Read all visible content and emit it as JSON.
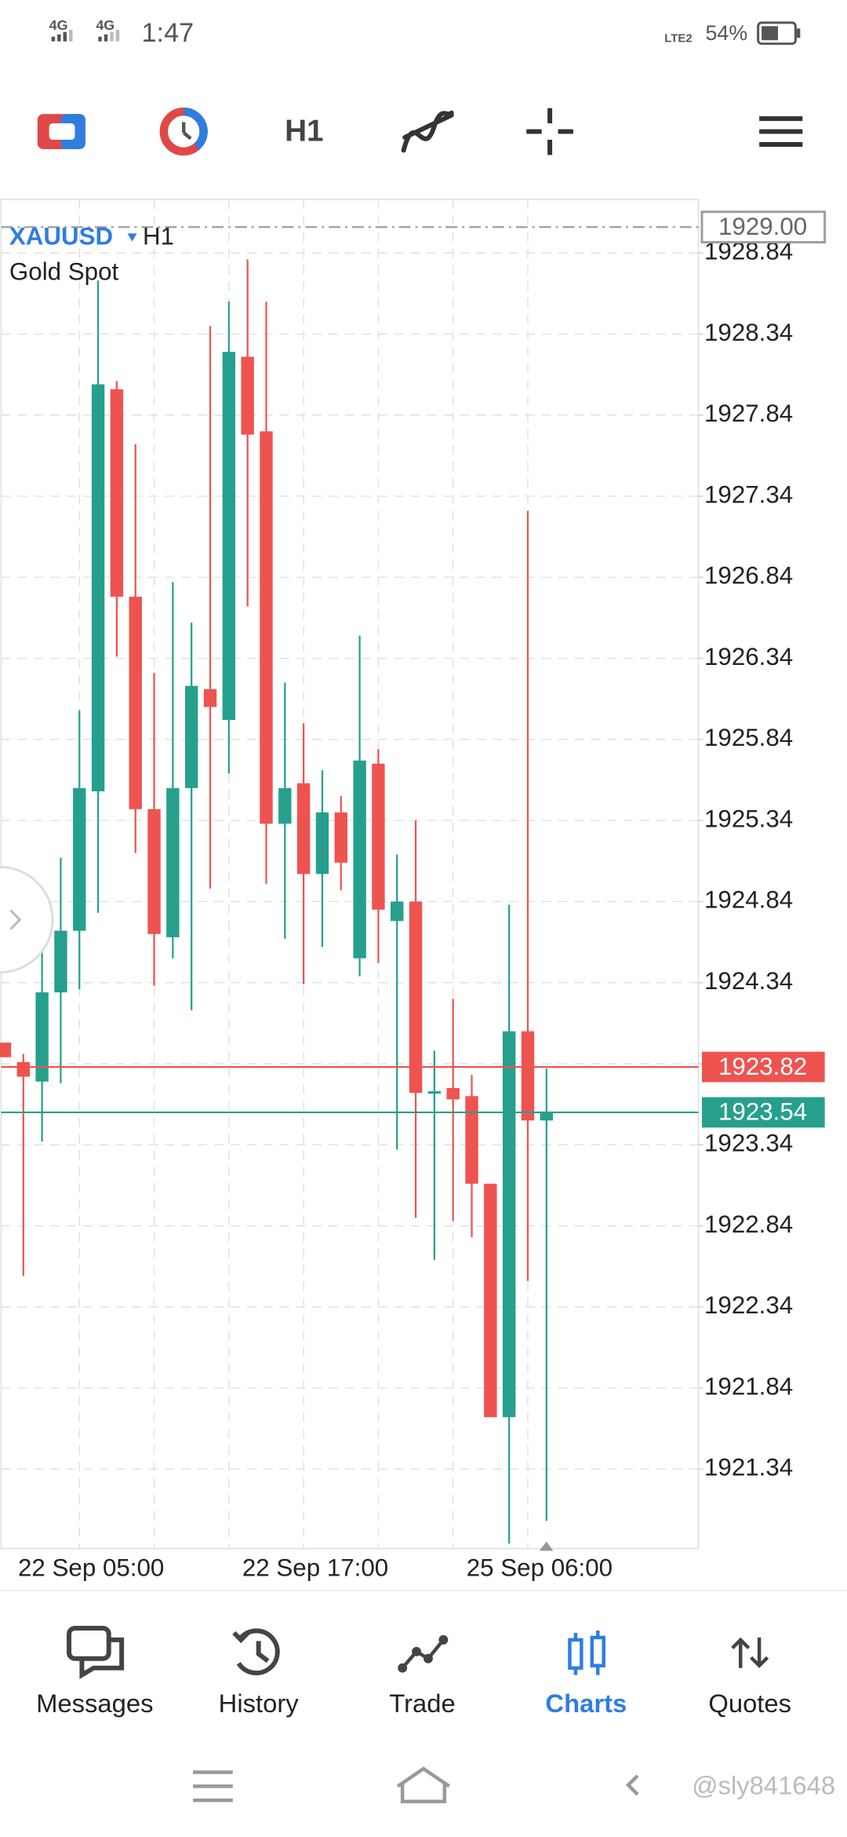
{
  "status_bar": {
    "network_1": "4G",
    "network_2": "4G",
    "time": "1:47",
    "network_3": "LTE2",
    "battery": "54%"
  },
  "toolbar": {
    "timeframe": "H1"
  },
  "chart_data": {
    "type": "candlestick",
    "symbol": "XAUUSD",
    "timeframe": "H1",
    "subtitle": "Gold Spot",
    "categories": [
      null,
      null,
      null,
      null,
      "22 Sep 05:00",
      null,
      null,
      null,
      null,
      null,
      null,
      null,
      null,
      null,
      null,
      null,
      "22 Sep 17:00",
      null,
      null,
      null,
      null,
      null,
      null,
      null,
      null,
      null,
      null,
      null,
      "25 Sep 06:00",
      null
    ],
    "open": [
      1923.97,
      1923.85,
      1923.73,
      1924.28,
      1924.66,
      1925.52,
      1928.0,
      1926.72,
      1925.41,
      1924.62,
      1925.54,
      1926.15,
      1925.96,
      1928.2,
      1927.74,
      1925.32,
      1925.57,
      1925.01,
      1925.39,
      1924.49,
      1925.69,
      1924.72,
      1924.84,
      1923.66,
      1923.69,
      1923.64,
      1923.1,
      1921.66,
      1924.04,
      1923.49
    ],
    "high": [
      1923.97,
      1923.9,
      1924.85,
      1925.11,
      1926.02,
      1928.67,
      1928.05,
      1927.66,
      1926.25,
      1926.81,
      1926.56,
      1928.39,
      1928.54,
      1928.8,
      1928.54,
      1926.19,
      1925.94,
      1925.65,
      1925.49,
      1926.48,
      1925.78,
      1925.13,
      1925.34,
      1923.92,
      1924.24,
      1923.77,
      1923.1,
      1924.82,
      1927.25,
      1923.81
    ],
    "low": [
      1923.88,
      1922.53,
      1923.36,
      1923.72,
      1924.3,
      1924.77,
      1926.35,
      1925.14,
      1924.32,
      1924.49,
      1924.17,
      1924.92,
      1925.63,
      1926.66,
      1924.95,
      1924.61,
      1924.33,
      1924.56,
      1924.91,
      1924.38,
      1924.46,
      1923.31,
      1922.89,
      1922.63,
      1922.87,
      1922.77,
      1921.66,
      1920.88,
      1922.5,
      1921.02
    ],
    "close": [
      1923.88,
      1923.76,
      1924.28,
      1924.66,
      1925.54,
      1928.03,
      1926.72,
      1925.41,
      1924.64,
      1925.54,
      1926.17,
      1926.04,
      1928.23,
      1927.72,
      1925.32,
      1925.54,
      1925.01,
      1925.39,
      1925.08,
      1925.71,
      1924.79,
      1924.84,
      1923.66,
      1923.67,
      1923.62,
      1923.1,
      1921.66,
      1924.04,
      1923.49,
      1923.54
    ],
    "up_color": "#26a08c",
    "down_color": "#ef5350",
    "ylim": [
      1920.85,
      1929.17
    ],
    "yticks": [
      1921.34,
      1921.84,
      1922.34,
      1922.84,
      1923.34,
      1923.84,
      1924.34,
      1924.84,
      1925.34,
      1925.84,
      1926.34,
      1926.84,
      1927.34,
      1927.84,
      1928.34,
      1928.84
    ],
    "grid": true,
    "price_lines": [
      {
        "value": 1929,
        "label": "1929.00",
        "color": "#9e9e9e",
        "style": "dashdot"
      },
      {
        "value": 1923.82,
        "color": "#ef5350",
        "style": "solid"
      },
      {
        "value": 1923.54,
        "color": "#26a08c",
        "style": "solid"
      }
    ]
  },
  "nav": {
    "items": [
      "Messages",
      "History",
      "Trade",
      "Charts",
      "Quotes"
    ],
    "active": 3
  },
  "watermark": "@sly841648"
}
